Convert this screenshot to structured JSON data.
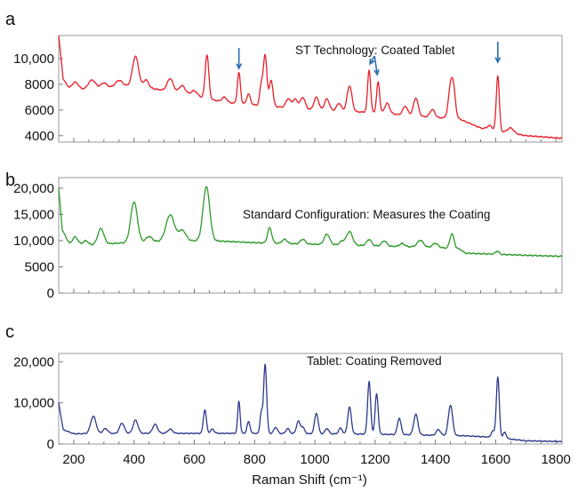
{
  "xlabel": "Raman Shift (cm⁻¹)",
  "x_ticks": [
    "200",
    "400",
    "600",
    "800",
    "1000",
    "1200",
    "1400",
    "1600",
    "1800"
  ],
  "chart_data": [
    {
      "type": "line",
      "panel": "a",
      "title": "",
      "annotation": "ST Technology: Coated Tablet",
      "color": "#e8202a",
      "xlim": [
        150,
        1820
      ],
      "ylim": [
        3500,
        11800
      ],
      "y_ticks": [
        "4000",
        "6000",
        "8000",
        "10,000"
      ],
      "baseline": [
        [
          150,
          11800
        ],
        [
          165,
          8400
        ],
        [
          185,
          7700
        ],
        [
          240,
          7600
        ],
        [
          400,
          7900
        ],
        [
          560,
          7300
        ],
        [
          700,
          6600
        ],
        [
          850,
          6300
        ],
        [
          1000,
          6000
        ],
        [
          1200,
          5800
        ],
        [
          1350,
          5500
        ],
        [
          1480,
          5300
        ],
        [
          1550,
          4600
        ],
        [
          1650,
          4200
        ],
        [
          1700,
          4000
        ],
        [
          1820,
          3800
        ]
      ],
      "peaks": [
        [
          205,
          500,
          10
        ],
        [
          260,
          700,
          12
        ],
        [
          300,
          400,
          10
        ],
        [
          350,
          500,
          12
        ],
        [
          405,
          2300,
          10
        ],
        [
          440,
          600,
          8
        ],
        [
          520,
          1000,
          10
        ],
        [
          560,
          600,
          10
        ],
        [
          600,
          400,
          10
        ],
        [
          642,
          3400,
          6
        ],
        [
          700,
          400,
          8
        ],
        [
          748,
          2400,
          5
        ],
        [
          780,
          800,
          6
        ],
        [
          822,
          1500,
          5
        ],
        [
          835,
          3900,
          6
        ],
        [
          855,
          2000,
          6
        ],
        [
          912,
          700,
          8
        ],
        [
          935,
          700,
          8
        ],
        [
          960,
          900,
          8
        ],
        [
          1005,
          1000,
          8
        ],
        [
          1040,
          900,
          8
        ],
        [
          1080,
          600,
          8
        ],
        [
          1115,
          2000,
          8
        ],
        [
          1180,
          3300,
          5
        ],
        [
          1210,
          2400,
          5
        ],
        [
          1240,
          800,
          8
        ],
        [
          1300,
          700,
          8
        ],
        [
          1335,
          1400,
          8
        ],
        [
          1390,
          600,
          8
        ],
        [
          1452,
          2800,
          8
        ],
        [
          1462,
          1200,
          6
        ],
        [
          1580,
          300,
          8
        ],
        [
          1607,
          4300,
          5
        ],
        [
          1650,
          400,
          10
        ]
      ],
      "arrows_x": [
        748,
        1180,
        1210,
        1607
      ],
      "series": [
        {
          "values_note": "",
          "color": "#e8202a"
        }
      ]
    },
    {
      "type": "line",
      "panel": "b",
      "title": "",
      "annotation": "Standard Configuration: Measures the Coating",
      "color": "#2f9a2b",
      "xlim": [
        150,
        1820
      ],
      "ylim": [
        0,
        22000
      ],
      "y_ticks": [
        "0",
        "5000",
        "10,000",
        "15,000",
        "20,000"
      ],
      "baseline": [
        [
          150,
          20000
        ],
        [
          162,
          12000
        ],
        [
          185,
          9500
        ],
        [
          260,
          9200
        ],
        [
          400,
          9700
        ],
        [
          520,
          9900
        ],
        [
          650,
          10000
        ],
        [
          800,
          9600
        ],
        [
          1000,
          9300
        ],
        [
          1200,
          9000
        ],
        [
          1400,
          8700
        ],
        [
          1480,
          8400
        ],
        [
          1500,
          7600
        ],
        [
          1550,
          7500
        ],
        [
          1700,
          7200
        ],
        [
          1820,
          7000
        ]
      ],
      "peaks": [
        [
          205,
          1300,
          8
        ],
        [
          240,
          700,
          8
        ],
        [
          290,
          3000,
          10
        ],
        [
          400,
          7700,
          11
        ],
        [
          450,
          1000,
          10
        ],
        [
          520,
          5000,
          14
        ],
        [
          560,
          2000,
          12
        ],
        [
          640,
          10300,
          11
        ],
        [
          850,
          2900,
          7
        ],
        [
          900,
          800,
          8
        ],
        [
          960,
          900,
          8
        ],
        [
          1040,
          2000,
          9
        ],
        [
          1090,
          700,
          8
        ],
        [
          1115,
          2600,
          10
        ],
        [
          1180,
          1200,
          8
        ],
        [
          1230,
          1000,
          8
        ],
        [
          1290,
          600,
          8
        ],
        [
          1350,
          1300,
          10
        ],
        [
          1400,
          800,
          9
        ],
        [
          1455,
          2800,
          7
        ],
        [
          1605,
          600,
          6
        ]
      ],
      "series": [
        {
          "values_note": "",
          "color": "#2f9a2b"
        }
      ]
    },
    {
      "type": "line",
      "panel": "c",
      "title": "",
      "annotation": "Tablet: Coating Removed",
      "color": "#2d3a8c",
      "xlim": [
        150,
        1820
      ],
      "ylim": [
        0,
        22000
      ],
      "y_ticks": [
        "0",
        "10,000",
        "20,000"
      ],
      "baseline": [
        [
          150,
          10000
        ],
        [
          165,
          3500
        ],
        [
          200,
          2500
        ],
        [
          400,
          2600
        ],
        [
          800,
          2600
        ],
        [
          1000,
          2500
        ],
        [
          1200,
          2400
        ],
        [
          1500,
          2000
        ],
        [
          1600,
          1600
        ],
        [
          1700,
          800
        ],
        [
          1820,
          600
        ]
      ],
      "peaks": [
        [
          265,
          4200,
          9
        ],
        [
          305,
          1200,
          8
        ],
        [
          360,
          2500,
          8
        ],
        [
          405,
          3200,
          8
        ],
        [
          470,
          2200,
          8
        ],
        [
          520,
          1000,
          8
        ],
        [
          635,
          5700,
          5
        ],
        [
          660,
          1000,
          6
        ],
        [
          748,
          7800,
          4
        ],
        [
          780,
          2800,
          5
        ],
        [
          822,
          5000,
          4
        ],
        [
          835,
          16800,
          5
        ],
        [
          870,
          1500,
          6
        ],
        [
          910,
          1200,
          6
        ],
        [
          945,
          3000,
          6
        ],
        [
          960,
          1500,
          6
        ],
        [
          1005,
          5000,
          6
        ],
        [
          1040,
          1300,
          6
        ],
        [
          1085,
          1400,
          6
        ],
        [
          1115,
          6500,
          6
        ],
        [
          1180,
          12800,
          5
        ],
        [
          1205,
          9800,
          5
        ],
        [
          1280,
          4000,
          6
        ],
        [
          1335,
          5000,
          7
        ],
        [
          1410,
          1400,
          7
        ],
        [
          1450,
          7400,
          7
        ],
        [
          1590,
          1500,
          5
        ],
        [
          1607,
          14700,
          5
        ],
        [
          1630,
          1500,
          5
        ]
      ],
      "series": [
        {
          "values_note": "",
          "color": "#2d3a8c"
        }
      ]
    }
  ]
}
